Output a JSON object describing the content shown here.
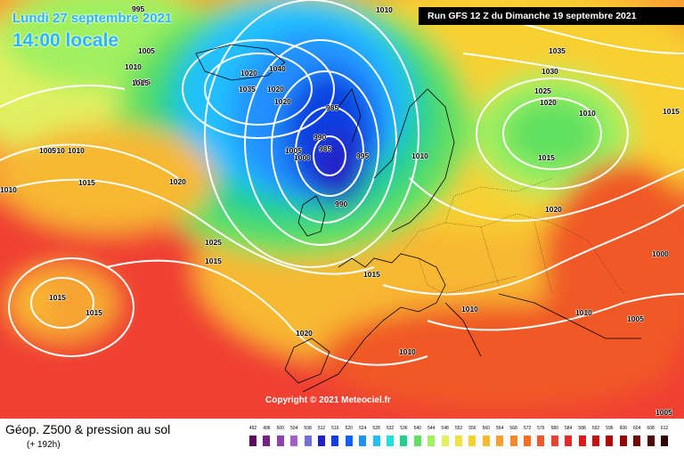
{
  "header": {
    "date": "Lundi 27 septembre 2021",
    "time": "14:00 locale",
    "run": "Run GFS 12 Z du Dimanche 19 septembre 2021"
  },
  "footer": {
    "title": "Géop. Z500 & pression au sol",
    "subtitle": "(+ 192h)",
    "copyright": "Copyright © 2021 Meteociel.fr"
  },
  "legend": {
    "values": [
      "492",
      "496",
      "500",
      "504",
      "508",
      "512",
      "516",
      "520",
      "524",
      "528",
      "532",
      "536",
      "540",
      "544",
      "548",
      "552",
      "556",
      "560",
      "564",
      "568",
      "572",
      "576",
      "580",
      "584",
      "588",
      "592",
      "596",
      "600",
      "604",
      "608",
      "612"
    ],
    "colors": [
      "#5b0a5e",
      "#7a1f8a",
      "#8e3fb0",
      "#a060c8",
      "#7070d8",
      "#2020c8",
      "#1040e0",
      "#1060ff",
      "#2090ff",
      "#20c0ff",
      "#20e0e0",
      "#20d090",
      "#60e060",
      "#a0f060",
      "#e0f060",
      "#f0e040",
      "#f8d030",
      "#f8b830",
      "#f8a030",
      "#f88828",
      "#f87020",
      "#f05828",
      "#f04030",
      "#e82828",
      "#e01818",
      "#c81010",
      "#b00808",
      "#900808",
      "#700808",
      "#500808",
      "#300000"
    ]
  },
  "isobars": [
    {
      "v": "995"
    },
    {
      "v": "1010"
    },
    {
      "v": "1005"
    },
    {
      "v": "1010"
    },
    {
      "v": "1015"
    },
    {
      "v": "1020"
    },
    {
      "v": "1040"
    },
    {
      "v": "1035"
    },
    {
      "v": "1020"
    },
    {
      "v": "1020"
    },
    {
      "v": "985"
    },
    {
      "v": "990"
    },
    {
      "v": "985"
    },
    {
      "v": "1005"
    },
    {
      "v": "1000"
    },
    {
      "v": "995"
    },
    {
      "v": "990"
    },
    {
      "v": "1010"
    },
    {
      "v": "1015"
    },
    {
      "v": "1010"
    },
    {
      "v": "1005"
    },
    {
      "v": "1010"
    },
    {
      "v": "1015"
    },
    {
      "v": "1020"
    },
    {
      "v": "1025"
    },
    {
      "v": "1015"
    },
    {
      "v": "1015"
    },
    {
      "v": "1015"
    },
    {
      "v": "1020"
    },
    {
      "v": "1015"
    },
    {
      "v": "1010"
    },
    {
      "v": "1010"
    },
    {
      "v": "1035"
    },
    {
      "v": "1030"
    },
    {
      "v": "1025"
    },
    {
      "v": "1020"
    },
    {
      "v": "1010"
    },
    {
      "v": "1015"
    },
    {
      "v": "1020"
    },
    {
      "v": "1010"
    },
    {
      "v": "1000"
    },
    {
      "v": "1010"
    },
    {
      "v": "1005"
    },
    {
      "v": "1005"
    },
    {
      "v": "1015"
    }
  ]
}
